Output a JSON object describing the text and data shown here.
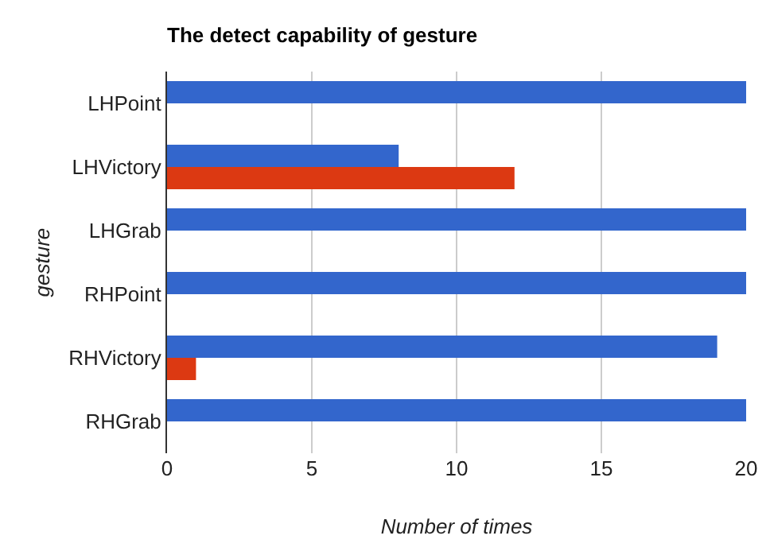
{
  "chart_data": {
    "type": "bar",
    "orientation": "horizontal",
    "title": "The detect capability of gesture",
    "xlabel": "Number of times",
    "ylabel": "gesture",
    "categories": [
      "LHPoint",
      "LHVictory",
      "LHGrab",
      "RHPoint",
      "RHVictory",
      "RHGrab"
    ],
    "series": [
      {
        "color": "#3366cc",
        "values": [
          20,
          8,
          20,
          20,
          19,
          20
        ]
      },
      {
        "color": "#dc3912",
        "values": [
          0,
          12,
          0,
          0,
          1,
          0
        ]
      }
    ],
    "xlim": [
      0,
      20
    ],
    "xticks": [
      0,
      5,
      10,
      15,
      20
    ],
    "grid": "x"
  }
}
